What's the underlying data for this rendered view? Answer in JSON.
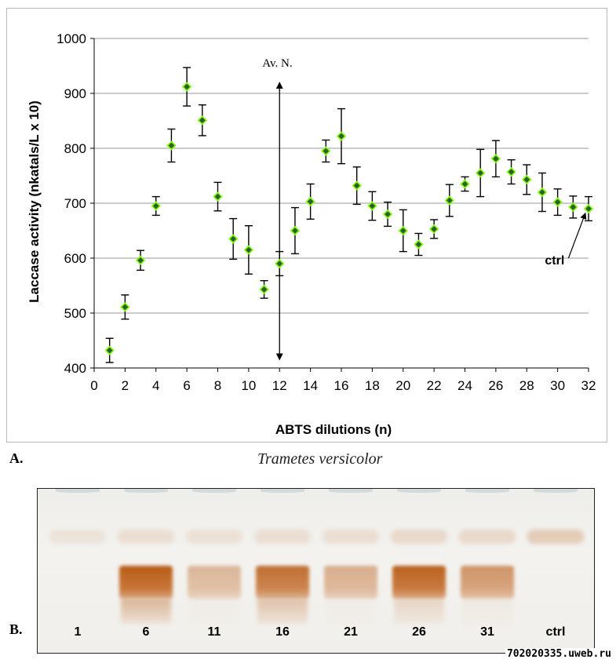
{
  "chart_data": {
    "type": "scatter",
    "xlabel": "ABTS dilutions (n)",
    "ylabel": "Laccase activity (nkatals/L x 10)",
    "xlim": [
      0,
      32
    ],
    "ylim": [
      400,
      1000
    ],
    "xticks": [
      0,
      2,
      4,
      6,
      8,
      10,
      12,
      14,
      16,
      18,
      20,
      22,
      24,
      26,
      28,
      30,
      32
    ],
    "yticks": [
      400,
      500,
      600,
      700,
      800,
      900,
      1000
    ],
    "grid": "horizontal",
    "marker_color": "#2f5d2f",
    "marker_edge_color": "#7cfc00",
    "points": [
      {
        "x": 1,
        "y": 432,
        "err": 22
      },
      {
        "x": 2,
        "y": 511,
        "err": 22
      },
      {
        "x": 3,
        "y": 596,
        "err": 18
      },
      {
        "x": 4,
        "y": 695,
        "err": 17
      },
      {
        "x": 5,
        "y": 805,
        "err": 30
      },
      {
        "x": 6,
        "y": 912,
        "err": 35
      },
      {
        "x": 7,
        "y": 851,
        "err": 28
      },
      {
        "x": 8,
        "y": 712,
        "err": 26
      },
      {
        "x": 9,
        "y": 635,
        "err": 37
      },
      {
        "x": 10,
        "y": 615,
        "err": 44
      },
      {
        "x": 11,
        "y": 543,
        "err": 16
      },
      {
        "x": 12,
        "y": 590,
        "err": 22
      },
      {
        "x": 13,
        "y": 650,
        "err": 42
      },
      {
        "x": 14,
        "y": 703,
        "err": 32
      },
      {
        "x": 15,
        "y": 795,
        "err": 20
      },
      {
        "x": 16,
        "y": 822,
        "err": 50
      },
      {
        "x": 17,
        "y": 732,
        "err": 34
      },
      {
        "x": 18,
        "y": 695,
        "err": 26
      },
      {
        "x": 19,
        "y": 680,
        "err": 22
      },
      {
        "x": 20,
        "y": 650,
        "err": 38
      },
      {
        "x": 21,
        "y": 625,
        "err": 20
      },
      {
        "x": 22,
        "y": 653,
        "err": 17
      },
      {
        "x": 23,
        "y": 705,
        "err": 29
      },
      {
        "x": 24,
        "y": 735,
        "err": 13
      },
      {
        "x": 25,
        "y": 755,
        "err": 43
      },
      {
        "x": 26,
        "y": 781,
        "err": 33
      },
      {
        "x": 27,
        "y": 757,
        "err": 22
      },
      {
        "x": 28,
        "y": 743,
        "err": 27
      },
      {
        "x": 29,
        "y": 720,
        "err": 35
      },
      {
        "x": 30,
        "y": 702,
        "err": 24
      },
      {
        "x": 31,
        "y": 693,
        "err": 20
      },
      {
        "x": 32,
        "y": 690,
        "err": 22
      }
    ],
    "annotations": {
      "avn_label": "Av. N.",
      "avn_x": 12,
      "avn_y_top": 920,
      "avn_y_bottom": 415,
      "ctrl_label": "ctrl",
      "ctrl_arrow_from": {
        "x": 30.7,
        "y": 600
      },
      "ctrl_arrow_to": {
        "x": 31.8,
        "y": 682
      }
    }
  },
  "figure": {
    "panel_a_label": "A.",
    "panel_b_label": "B.",
    "species": "Trametes versicolor"
  },
  "gel": {
    "lanes": [
      {
        "label": "1",
        "main": 0.0,
        "smear": 0.0,
        "top": 0.25
      },
      {
        "label": "6",
        "main": 1.0,
        "smear": 0.75,
        "top": 0.35
      },
      {
        "label": "11",
        "main": 0.28,
        "smear": 0.05,
        "top": 0.3
      },
      {
        "label": "16",
        "main": 0.85,
        "smear": 0.6,
        "top": 0.35
      },
      {
        "label": "21",
        "main": 0.35,
        "smear": 0.05,
        "top": 0.35
      },
      {
        "label": "26",
        "main": 0.95,
        "smear": 0.35,
        "top": 0.45
      },
      {
        "label": "31",
        "main": 0.55,
        "smear": 0.1,
        "top": 0.45
      },
      {
        "label": "ctrl",
        "main": 0.0,
        "smear": 0.0,
        "top": 0.7
      }
    ],
    "band_color": "#b85c16"
  },
  "watermark": "702020335.uweb.ru"
}
